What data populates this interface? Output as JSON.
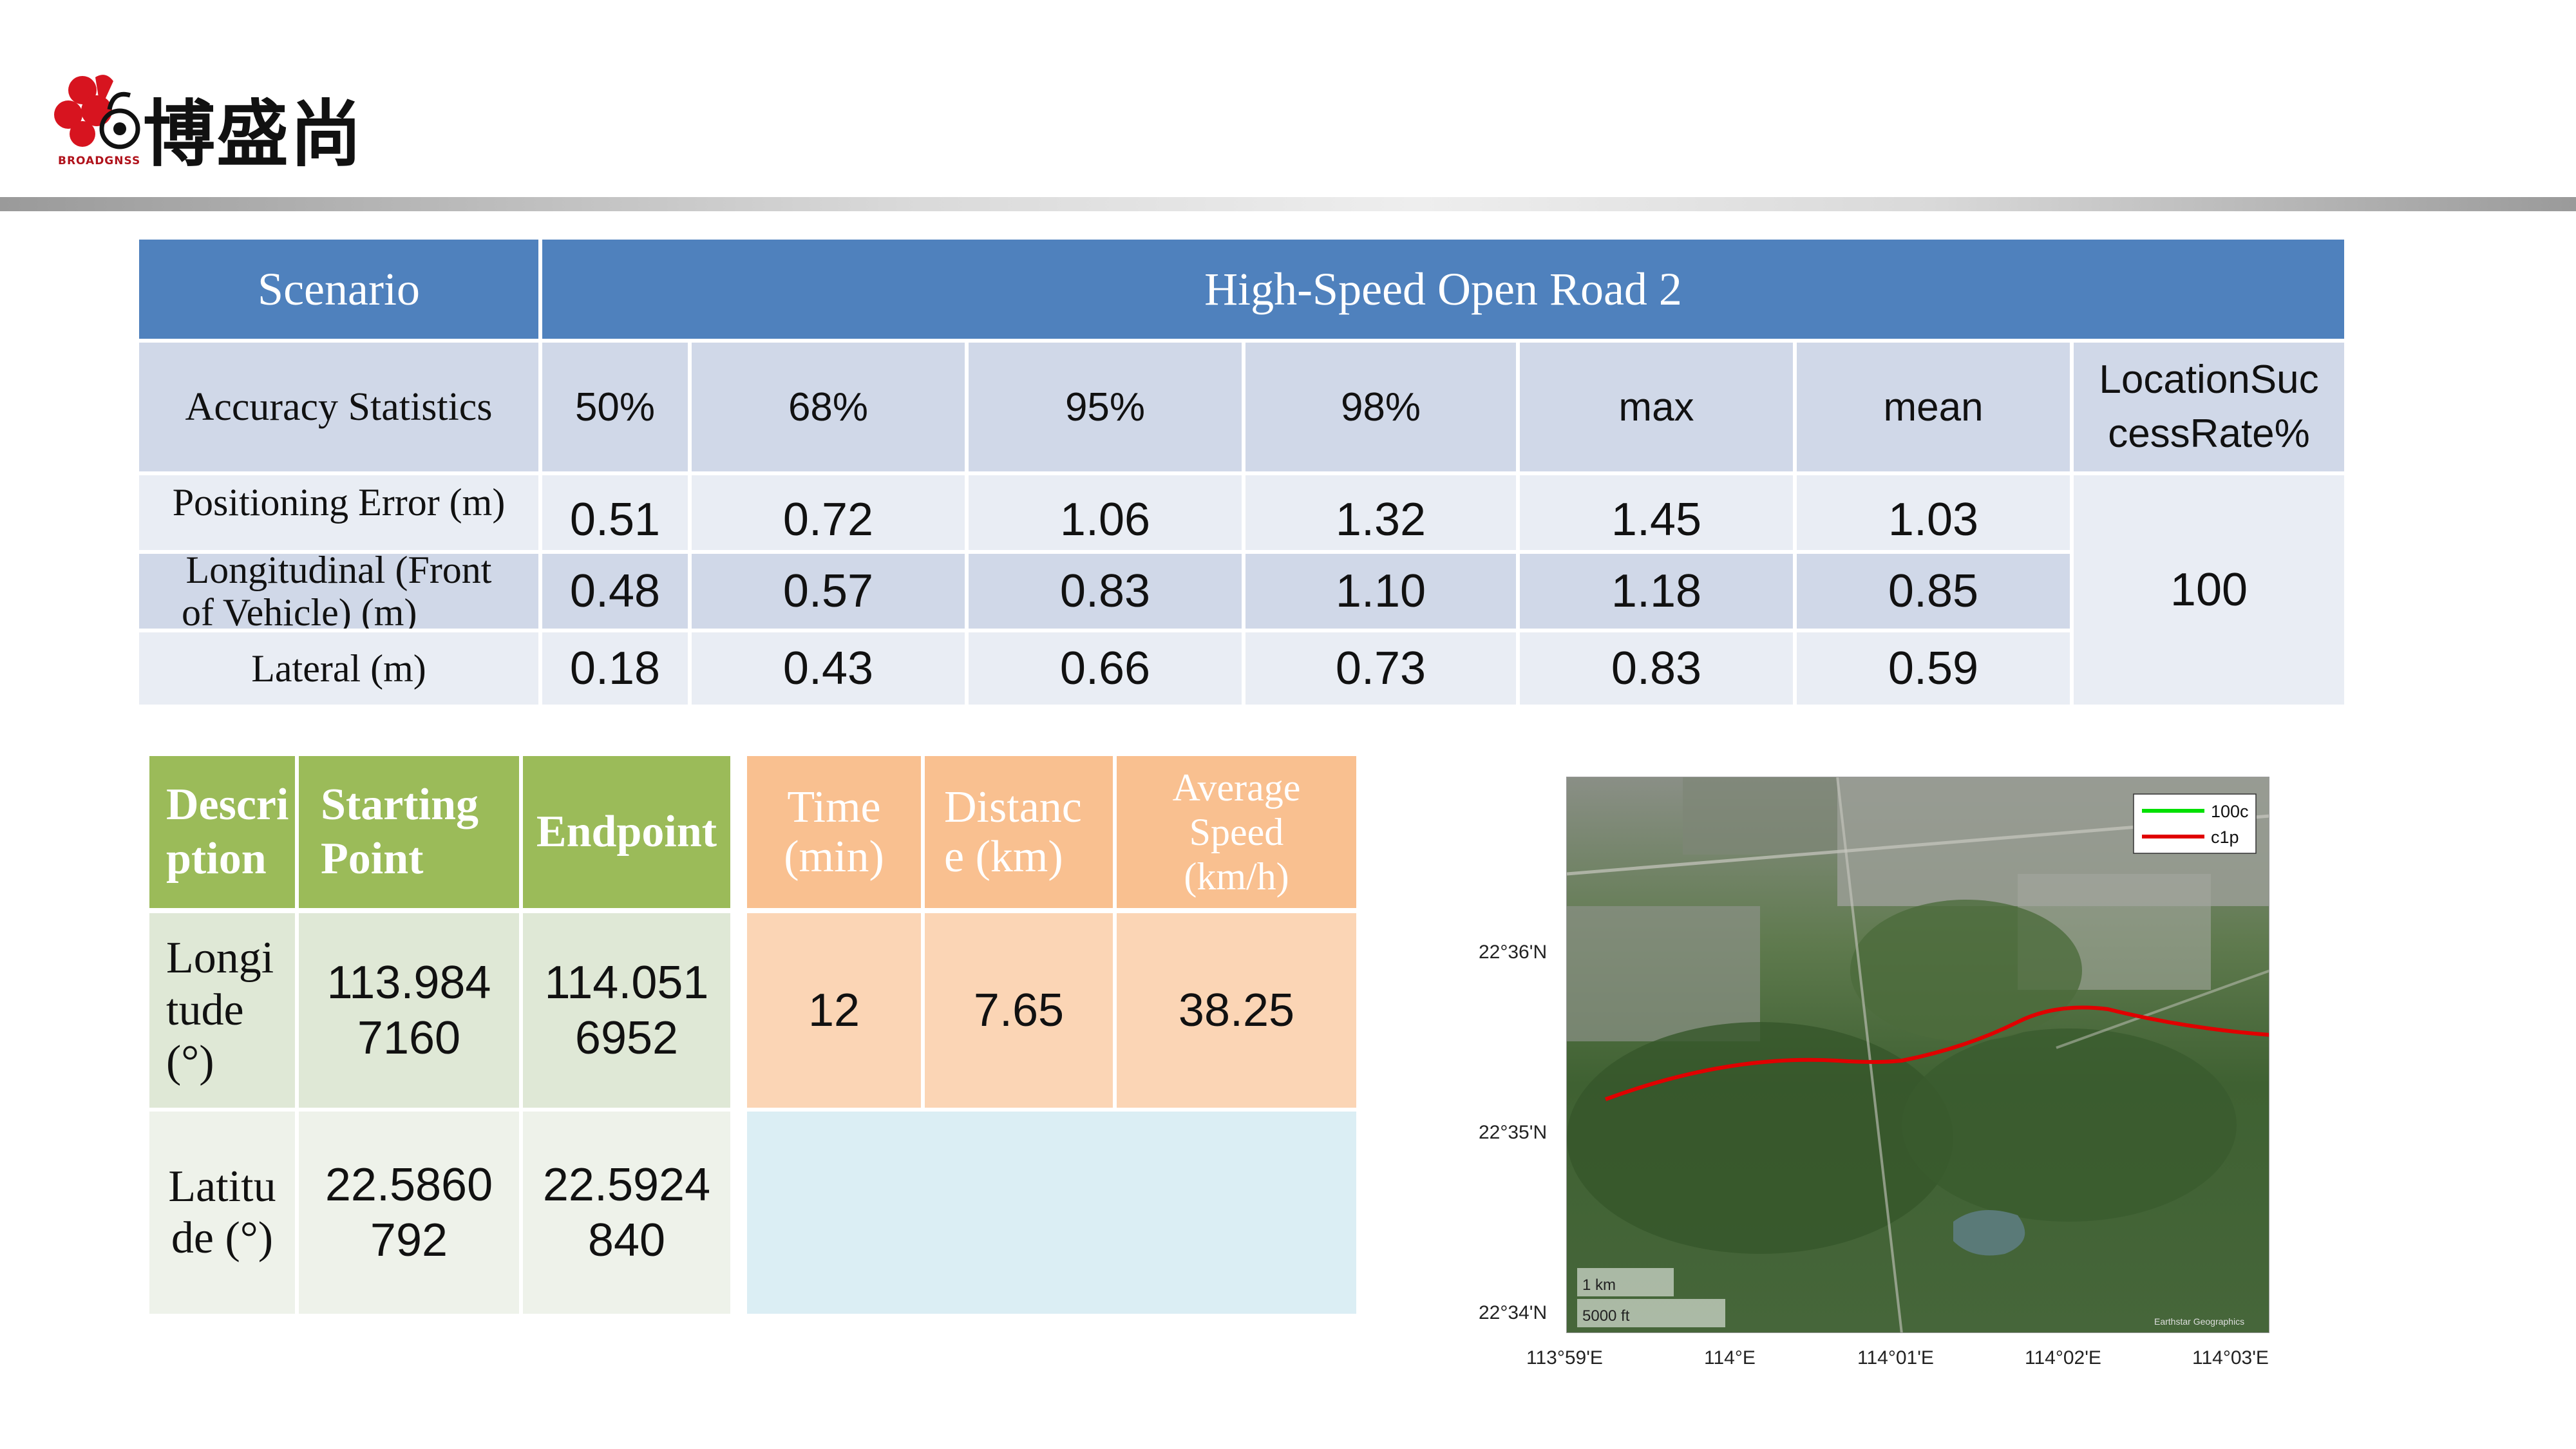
{
  "header": {
    "brand_name": "博盛尚",
    "brand_sub": "BROADGNSS"
  },
  "accuracy_table": {
    "scenario_label": "Scenario",
    "scenario_value": "High-Speed Open Road 2",
    "stats_label": "Accuracy Statistics",
    "columns": [
      "50%",
      "68%",
      "95%",
      "98%",
      "max",
      "mean"
    ],
    "success_label_l1": "LocationSuc",
    "success_label_l2": "cessRate%",
    "rows": [
      {
        "label": "Positioning Error (m)",
        "values": [
          "0.51",
          "0.72",
          "1.06",
          "1.32",
          "1.45",
          "1.03"
        ]
      },
      {
        "label_l1": "Longitudinal (Front",
        "label_l2": "of Vehicle) (m)",
        "values": [
          "0.48",
          "0.57",
          "0.83",
          "1.10",
          "1.18",
          "0.85"
        ]
      },
      {
        "label": "Lateral (m)",
        "values": [
          "0.18",
          "0.43",
          "0.66",
          "0.73",
          "0.83",
          "0.59"
        ]
      }
    ],
    "success_value": "100"
  },
  "route_table": {
    "desc_l1": "Descri",
    "desc_l2": "ption",
    "start_l1": "Starting",
    "start_l2": "Point",
    "endpoint": "Endpoint",
    "time_l1": "Time",
    "time_l2": "(min)",
    "dist_l1": "Distanc",
    "dist_l2": "e (km)",
    "speed_l1": "Average",
    "speed_l2": "Speed",
    "speed_l3": "(km/h)",
    "lon_l1": "Longi",
    "lon_l2": "tude",
    "lon_l3": "(°)",
    "lon_start_l1": "113.984",
    "lon_start_l2": "7160",
    "lon_end_l1": "114.051",
    "lon_end_l2": "6952",
    "lat_l1": "Latitu",
    "lat_l2": "de (°)",
    "lat_start_l1": "22.5860",
    "lat_start_l2": "792",
    "lat_end_l1": "22.5924",
    "lat_end_l2": "840",
    "time_value": "12",
    "distance_value": "7.65",
    "speed_value": "38.25"
  },
  "map": {
    "legend": [
      {
        "label": "100c",
        "color": "#00e000"
      },
      {
        "label": "c1p",
        "color": "#e00000"
      }
    ],
    "y_ticks": [
      "22°36'N",
      "22°35'N",
      "22°34'N"
    ],
    "x_ticks": [
      "113°59'E",
      "114°E",
      "114°01'E",
      "114°02'E",
      "114°03'E"
    ],
    "scale_km": "1 km",
    "scale_ft": "5000 ft",
    "attribution": "Earthstar Geographics"
  }
}
